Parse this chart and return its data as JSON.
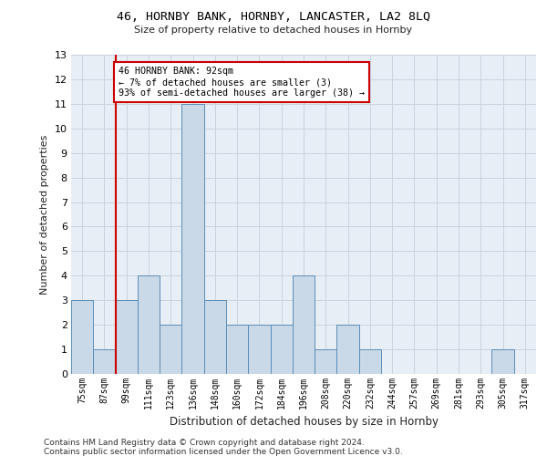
{
  "title1": "46, HORNBY BANK, HORNBY, LANCASTER, LA2 8LQ",
  "title2": "Size of property relative to detached houses in Hornby",
  "xlabel": "Distribution of detached houses by size in Hornby",
  "ylabel": "Number of detached properties",
  "categories": [
    "75sqm",
    "87sqm",
    "99sqm",
    "111sqm",
    "123sqm",
    "136sqm",
    "148sqm",
    "160sqm",
    "172sqm",
    "184sqm",
    "196sqm",
    "208sqm",
    "220sqm",
    "232sqm",
    "244sqm",
    "257sqm",
    "269sqm",
    "281sqm",
    "293sqm",
    "305sqm",
    "317sqm"
  ],
  "values": [
    3,
    1,
    3,
    4,
    2,
    11,
    3,
    2,
    2,
    2,
    4,
    1,
    2,
    1,
    0,
    0,
    0,
    0,
    0,
    1,
    0
  ],
  "bar_color": "#c9d9e8",
  "bar_edge_color": "#5b8db8",
  "annotation_text": "46 HORNBY BANK: 92sqm\n← 7% of detached houses are smaller (3)\n93% of semi-detached houses are larger (38) →",
  "annotation_box_color": "#ffffff",
  "annotation_box_edge_color": "#cc0000",
  "grid_color": "#c8d4e0",
  "background_color": "#e8eef5",
  "ylim": [
    0,
    13
  ],
  "yticks": [
    0,
    1,
    2,
    3,
    4,
    5,
    6,
    7,
    8,
    9,
    10,
    11,
    12,
    13
  ],
  "footnote1": "Contains HM Land Registry data © Crown copyright and database right 2024.",
  "footnote2": "Contains public sector information licensed under the Open Government Licence v3.0."
}
